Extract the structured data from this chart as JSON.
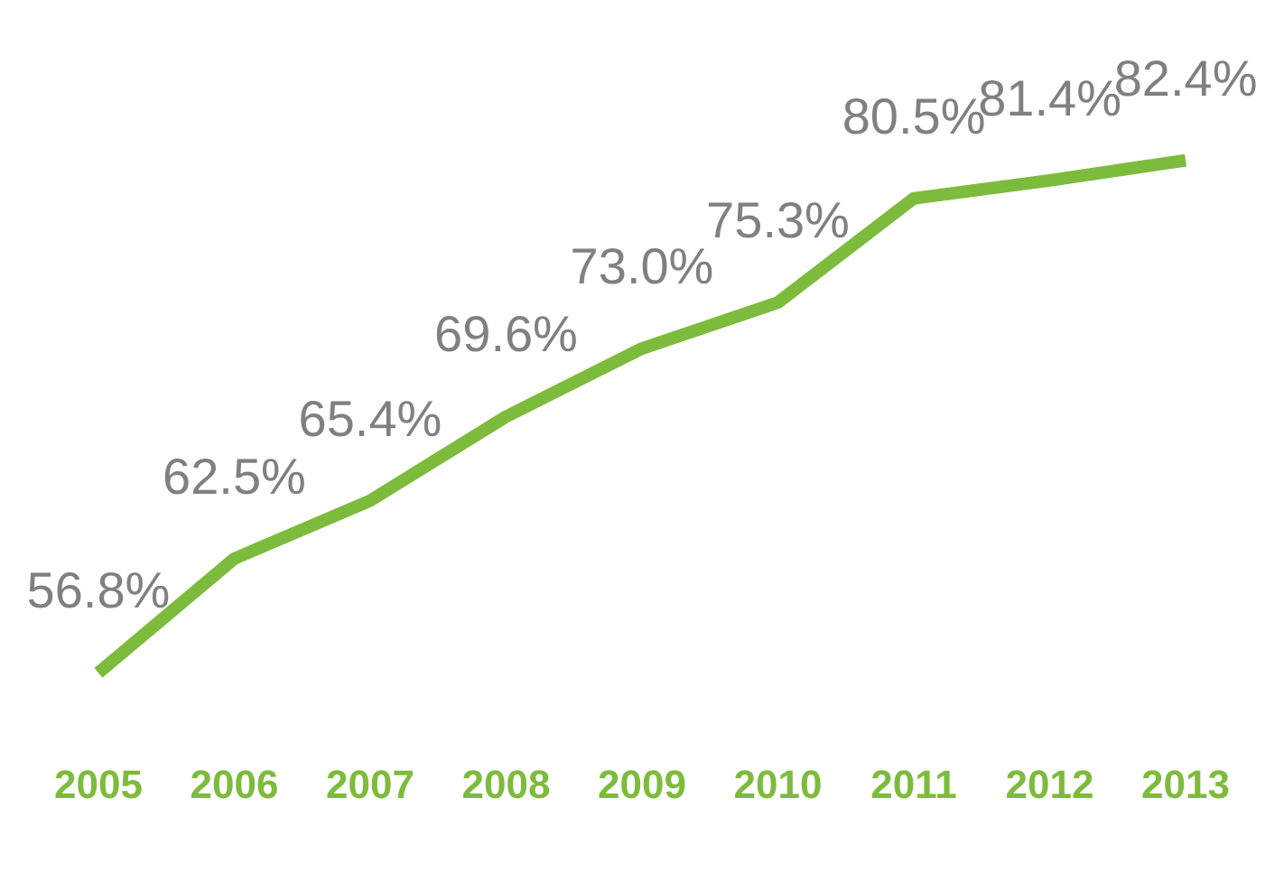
{
  "chart_data": {
    "type": "line",
    "categories": [
      "2005",
      "2006",
      "2007",
      "2008",
      "2009",
      "2010",
      "2011",
      "2012",
      "2013"
    ],
    "series": [
      {
        "color": "#7dbb3c",
        "values": [
          56.8,
          62.5,
          65.4,
          69.6,
          73.0,
          75.3,
          80.5,
          81.4,
          82.4
        ],
        "value_labels": [
          "56.8%",
          "62.5%",
          "65.4%",
          "69.6%",
          "73.0%",
          "75.3%",
          "80.5%",
          "81.4%",
          "82.4%"
        ]
      }
    ],
    "grid": false,
    "legend": false,
    "marker": "none",
    "line_style": "solid",
    "tick_labels": "x"
  }
}
